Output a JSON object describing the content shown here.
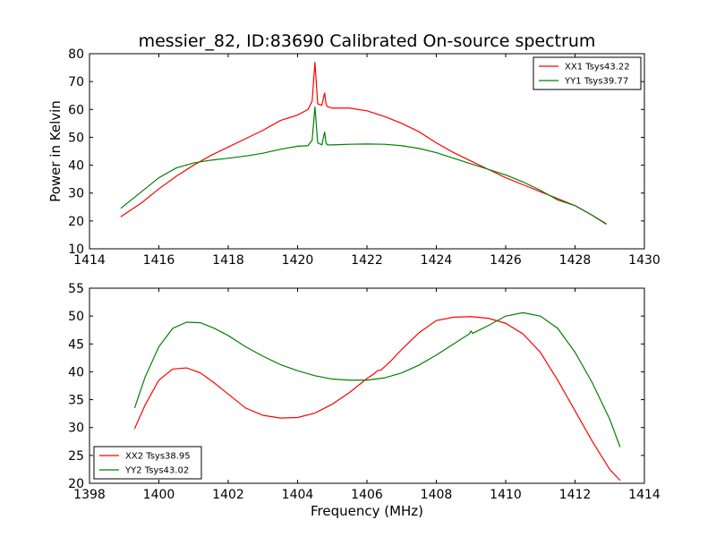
{
  "title": "messier_82, ID:83690 Calibrated On-source spectrum",
  "chart_data": [
    {
      "type": "line",
      "ylabel": "Power in Kelvin",
      "xlabel": "",
      "xlim": [
        1414,
        1430
      ],
      "ylim": [
        10,
        80
      ],
      "xticks": [
        1414,
        1416,
        1418,
        1420,
        1422,
        1424,
        1426,
        1428,
        1430
      ],
      "yticks": [
        10,
        20,
        30,
        40,
        50,
        60,
        70,
        80
      ],
      "legend_position": "top-right",
      "series": [
        {
          "name": "XX1 Tsys43.22",
          "color": "#ff0000",
          "x": [
            1414.9,
            1415.5,
            1416,
            1416.5,
            1417,
            1417.5,
            1418,
            1418.5,
            1419,
            1419.5,
            1420,
            1420.3,
            1420.42,
            1420.5,
            1420.58,
            1420.7,
            1420.78,
            1420.82,
            1420.86,
            1421,
            1421.5,
            1422,
            1422.5,
            1423,
            1423.5,
            1424,
            1424.5,
            1425,
            1425.5,
            1426,
            1426.5,
            1427,
            1427.5,
            1428,
            1428.5,
            1428.9
          ],
          "y": [
            21.5,
            26.5,
            31.5,
            36,
            40,
            43.5,
            46.5,
            49.5,
            52.5,
            56,
            58,
            60,
            63,
            77,
            62,
            61.5,
            66,
            62,
            61,
            60.5,
            60.5,
            59.5,
            57.5,
            55,
            52,
            48,
            44.5,
            41.5,
            38.5,
            35.5,
            33,
            30.5,
            28,
            25.5,
            22,
            19
          ]
        },
        {
          "name": "YY1 Tsys39.77",
          "color": "#008000",
          "x": [
            1414.9,
            1415.5,
            1416,
            1416.5,
            1417,
            1417.5,
            1418,
            1418.5,
            1419,
            1419.5,
            1420,
            1420.3,
            1420.42,
            1420.5,
            1420.58,
            1420.7,
            1420.78,
            1420.82,
            1420.86,
            1421,
            1421.5,
            1422,
            1422.5,
            1423,
            1423.5,
            1424,
            1424.5,
            1425,
            1425.5,
            1426,
            1426.5,
            1427,
            1427.5,
            1428,
            1428.5,
            1428.9
          ],
          "y": [
            24.5,
            30.5,
            35.5,
            39,
            40.8,
            41.8,
            42.5,
            43.3,
            44.3,
            45.7,
            46.8,
            47,
            49,
            61,
            48,
            47.3,
            52,
            48,
            47.3,
            47.3,
            47.5,
            47.6,
            47.5,
            47,
            46,
            44.5,
            42.5,
            40.5,
            38.5,
            36.5,
            34,
            31,
            27.5,
            25.5,
            22,
            18.8
          ]
        }
      ]
    },
    {
      "type": "line",
      "ylabel": "",
      "xlabel": "Frequency (MHz)",
      "xlim": [
        1398,
        1414
      ],
      "ylim": [
        20,
        55
      ],
      "xticks": [
        1398,
        1400,
        1402,
        1404,
        1406,
        1408,
        1410,
        1412,
        1414
      ],
      "yticks": [
        20,
        25,
        30,
        35,
        40,
        45,
        50,
        55
      ],
      "legend_position": "bottom-left",
      "series": [
        {
          "name": "XX2 Tsys38.95",
          "color": "#ff0000",
          "x": [
            1399.3,
            1399.6,
            1400,
            1400.4,
            1400.8,
            1401.2,
            1401.6,
            1402,
            1402.5,
            1403,
            1403.5,
            1404,
            1404.5,
            1405,
            1405.5,
            1406,
            1406.2,
            1406.3,
            1406.4,
            1406.7,
            1407,
            1407.5,
            1408,
            1408.5,
            1409,
            1409.5,
            1410,
            1410.5,
            1411,
            1411.5,
            1412,
            1412.5,
            1413,
            1413.3
          ],
          "y": [
            29.8,
            34,
            38.5,
            40.5,
            40.7,
            39.8,
            38,
            36,
            33.5,
            32.2,
            31.7,
            31.8,
            32.6,
            34.2,
            36.3,
            38.8,
            39.6,
            40.2,
            40.3,
            42,
            44,
            47,
            49.2,
            49.8,
            49.9,
            49.6,
            48.7,
            46.8,
            43.5,
            38.5,
            33,
            27.5,
            22.5,
            20.5
          ]
        },
        {
          "name": "YY2 Tsys43.02",
          "color": "#008000",
          "x": [
            1399.3,
            1399.6,
            1400,
            1400.4,
            1400.8,
            1401.2,
            1401.6,
            1402,
            1402.5,
            1403,
            1403.5,
            1404,
            1404.5,
            1405,
            1405.5,
            1406,
            1406.5,
            1407,
            1407.5,
            1408,
            1408.5,
            1408.95,
            1409,
            1409.05,
            1409.5,
            1410,
            1410.5,
            1411,
            1411.5,
            1412,
            1412.5,
            1413,
            1413.3
          ],
          "y": [
            33.5,
            39,
            44.5,
            47.8,
            48.9,
            48.8,
            47.8,
            46.5,
            44.5,
            42.8,
            41.3,
            40.2,
            39.3,
            38.7,
            38.5,
            38.5,
            38.9,
            39.8,
            41.2,
            43,
            45,
            46.8,
            47.3,
            46.9,
            48.3,
            50,
            50.6,
            50,
            47.8,
            43.5,
            38,
            31.5,
            26.5
          ]
        }
      ]
    }
  ]
}
